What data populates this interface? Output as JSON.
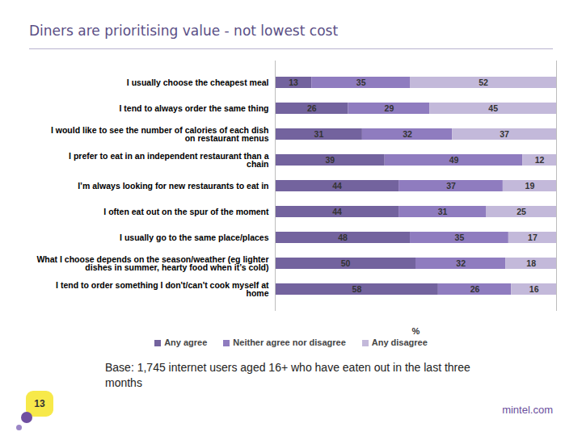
{
  "chart_data": {
    "type": "bar",
    "title": "Diners are prioritising value - not lowest cost",
    "orientation": "horizontal",
    "stacked": true,
    "data_labels": true,
    "tick_labels": "y",
    "legend": "bottom",
    "xlabel": "%",
    "xlim": [
      0,
      100
    ],
    "categories": [
      "I usually choose the cheapest meal",
      "I tend to always order the same thing",
      "I would like to see the number of calories of each dish on restaurant menus",
      "I prefer to eat in an independent restaurant than a chain",
      "I’m always looking for new restaurants to eat in",
      "I often eat out on the spur of the moment",
      "I usually go to the same place/places",
      "What I choose depends on the season/weather (eg lighter dishes in summer, hearty food when it’s cold)",
      "I tend to order something I don't/can't cook myself at home"
    ],
    "series": [
      {
        "name": "Any agree",
        "color": "#73639e",
        "values": [
          13,
          26,
          31,
          39,
          44,
          44,
          48,
          50,
          58
        ]
      },
      {
        "name": "Neither agree nor disagree",
        "color": "#8f7cbf",
        "values": [
          35,
          29,
          32,
          49,
          37,
          31,
          35,
          32,
          26
        ]
      },
      {
        "name": "Any disagree",
        "color": "#c3b9da",
        "values": [
          52,
          45,
          37,
          12,
          19,
          25,
          17,
          18,
          16
        ]
      }
    ],
    "annotations": [
      "Base: 1,745 internet users aged 16+ who have eaten out in the last three months",
      "13",
      "mintel.com"
    ]
  }
}
